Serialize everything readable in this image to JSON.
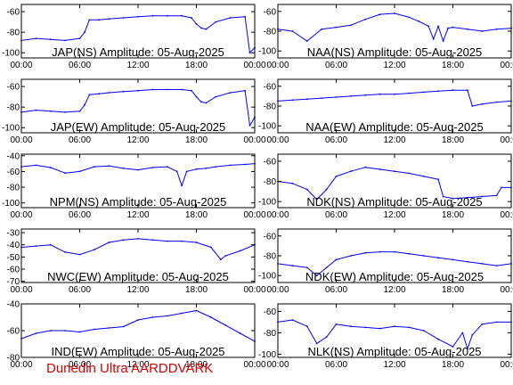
{
  "credit": "Dunedin Ultra AARDDVARK",
  "chart_data": [
    {
      "type": "line",
      "title": "JAP(NS) Amplitude: 05-Aug-2025",
      "ylim": [
        -105,
        -53
      ],
      "yticks": [
        -100,
        -80,
        -60
      ],
      "x": [
        "00:00",
        "01:30",
        "03:00",
        "04:30",
        "06:00",
        "06:30",
        "07:00",
        "08:00",
        "09:00",
        "10:30",
        "12:00",
        "13:30",
        "15:00",
        "16:30",
        "17:30",
        "18:00",
        "18:30",
        "19:00",
        "20:00",
        "21:30",
        "23:00",
        "23:30",
        "24:00"
      ],
      "series": [
        {
          "color": "#0000ff",
          "values": [
            -88,
            -86,
            -87,
            -88,
            -86,
            -80,
            -68,
            -68,
            -67,
            -66,
            -65,
            -64,
            -64,
            -64,
            -66,
            -72,
            -76,
            -77,
            -70,
            -66,
            -65,
            -100,
            -95
          ]
        }
      ]
    },
    {
      "type": "line",
      "title": "NAA(NS) Amplitude: 05-Aug-2025",
      "ylim": [
        -107,
        -53
      ],
      "yticks": [
        -100,
        -80,
        -60
      ],
      "x": [
        "00:00",
        "01:30",
        "03:00",
        "04:30",
        "06:00",
        "07:30",
        "09:00",
        "10:30",
        "12:00",
        "13:30",
        "14:30",
        "15:30",
        "16:00",
        "16:30",
        "17:00",
        "17:30",
        "18:00",
        "19:30",
        "21:00",
        "22:30",
        "24:00"
      ],
      "series": [
        {
          "color": "#0000ff",
          "values": [
            -78,
            -80,
            -90,
            -78,
            -76,
            -74,
            -68,
            -63,
            -62,
            -66,
            -70,
            -75,
            -88,
            -75,
            -90,
            -77,
            -76,
            -78,
            -80,
            -78,
            -77
          ]
        }
      ]
    },
    {
      "type": "line",
      "title": "JAP(EW) Amplitude: 05-Aug-2025",
      "ylim": [
        -105,
        -53
      ],
      "yticks": [
        -100,
        -80,
        -60
      ],
      "x": [
        "00:00",
        "01:30",
        "03:00",
        "04:30",
        "06:00",
        "06:30",
        "07:00",
        "08:00",
        "09:00",
        "10:30",
        "12:00",
        "13:30",
        "15:00",
        "16:30",
        "17:30",
        "18:00",
        "18:30",
        "19:00",
        "20:00",
        "21:30",
        "23:00",
        "23:30",
        "24:00"
      ],
      "series": [
        {
          "color": "#0000ff",
          "values": [
            -85,
            -83,
            -84,
            -85,
            -84,
            -78,
            -68,
            -67,
            -66,
            -65,
            -64,
            -63,
            -63,
            -63,
            -64,
            -70,
            -75,
            -76,
            -70,
            -66,
            -64,
            -98,
            -90
          ]
        }
      ]
    },
    {
      "type": "line",
      "title": "NAA(EW) Amplitude: 05-Aug-2025",
      "ylim": [
        -107,
        -53
      ],
      "yticks": [
        -100,
        -80,
        -60
      ],
      "x": [
        "00:00",
        "01:30",
        "03:00",
        "04:30",
        "06:00",
        "07:30",
        "09:00",
        "10:30",
        "12:00",
        "13:30",
        "15:00",
        "16:30",
        "18:00",
        "19:30",
        "20:00",
        "21:00",
        "22:30",
        "24:00"
      ],
      "series": [
        {
          "color": "#0000ff",
          "values": [
            -75,
            -74,
            -73,
            -72,
            -71,
            -70,
            -69,
            -68,
            -68,
            -67,
            -66,
            -65,
            -64,
            -64,
            -80,
            -78,
            -76,
            -75
          ]
        }
      ]
    },
    {
      "type": "line",
      "title": "NPM(NS) Amplitude: 05-Aug-2025",
      "ylim": [
        -106,
        -38
      ],
      "yticks": [
        -100,
        -80,
        -60,
        -40
      ],
      "x": [
        "00:00",
        "01:30",
        "03:00",
        "04:30",
        "06:00",
        "07:30",
        "09:00",
        "10:30",
        "12:00",
        "13:30",
        "15:00",
        "16:00",
        "16:30",
        "17:00",
        "18:00",
        "19:00",
        "20:00",
        "21:30",
        "23:00",
        "24:00"
      ],
      "series": [
        {
          "color": "#0000ff",
          "values": [
            -54,
            -52,
            -55,
            -62,
            -60,
            -54,
            -53,
            -56,
            -58,
            -55,
            -54,
            -60,
            -78,
            -60,
            -57,
            -56,
            -54,
            -52,
            -51,
            -50
          ]
        }
      ]
    },
    {
      "type": "line",
      "title": "NDK(NS) Amplitude: 05-Aug-2025",
      "ylim": [
        -106,
        -53
      ],
      "yticks": [
        -100,
        -80,
        -60
      ],
      "x": [
        "00:00",
        "01:30",
        "03:00",
        "04:00",
        "05:00",
        "06:00",
        "07:30",
        "09:00",
        "10:30",
        "12:00",
        "13:30",
        "15:00",
        "16:30",
        "17:00",
        "18:00",
        "19:30",
        "21:00",
        "22:30",
        "23:00",
        "24:00"
      ],
      "series": [
        {
          "color": "#0000ff",
          "values": [
            -80,
            -82,
            -88,
            -98,
            -88,
            -75,
            -70,
            -66,
            -68,
            -70,
            -72,
            -75,
            -78,
            -95,
            -97,
            -96,
            -95,
            -94,
            -86,
            -86
          ]
        }
      ]
    },
    {
      "type": "line",
      "title": "NWC(EW) Amplitude: 05-Aug-2025",
      "ylim": [
        -71,
        -27
      ],
      "yticks": [
        -70,
        -60,
        -50,
        -40,
        -30
      ],
      "x": [
        "00:00",
        "01:30",
        "03:00",
        "04:30",
        "06:00",
        "07:30",
        "09:00",
        "10:30",
        "12:00",
        "13:30",
        "15:00",
        "16:30",
        "18:00",
        "19:30",
        "20:30",
        "21:00",
        "22:30",
        "24:00"
      ],
      "series": [
        {
          "color": "#0000ff",
          "values": [
            -42,
            -41,
            -40,
            -46,
            -48,
            -44,
            -38,
            -36,
            -35,
            -36,
            -37,
            -37,
            -38,
            -42,
            -52,
            -49,
            -45,
            -40
          ]
        }
      ]
    },
    {
      "type": "line",
      "title": "NDK(EW) Amplitude: 05-Aug-2025",
      "ylim": [
        -107,
        -53
      ],
      "yticks": [
        -100,
        -80,
        -60
      ],
      "x": [
        "00:00",
        "01:30",
        "03:00",
        "04:00",
        "05:00",
        "06:00",
        "07:30",
        "09:00",
        "10:30",
        "12:00",
        "13:30",
        "15:00",
        "16:30",
        "18:00",
        "19:30",
        "21:00",
        "22:30",
        "24:00"
      ],
      "series": [
        {
          "color": "#0000ff",
          "values": [
            -88,
            -90,
            -92,
            -100,
            -92,
            -84,
            -80,
            -77,
            -76,
            -76,
            -78,
            -80,
            -82,
            -84,
            -86,
            -88,
            -90,
            -88
          ]
        }
      ]
    },
    {
      "type": "line",
      "title": "IND(EW) Amplitude: 05-Aug-2025",
      "ylim": [
        -80,
        -40
      ],
      "yticks": [
        -80,
        -60,
        -40
      ],
      "x": [
        "00:00",
        "01:30",
        "03:00",
        "04:30",
        "06:00",
        "07:30",
        "09:00",
        "10:30",
        "12:00",
        "13:30",
        "15:00",
        "16:30",
        "18:00",
        "19:30",
        "21:00",
        "22:30",
        "24:00"
      ],
      "series": [
        {
          "color": "#0000ff",
          "values": [
            -66,
            -62,
            -60,
            -60,
            -61,
            -59,
            -58,
            -57,
            -52,
            -50,
            -49,
            -47,
            -45,
            -50,
            -56,
            -62,
            -68
          ]
        }
      ]
    },
    {
      "type": "line",
      "title": "NLK(NS) Amplitude: 05-Aug-2025",
      "ylim": [
        -103,
        -53
      ],
      "yticks": [
        -100,
        -80,
        -60
      ],
      "x": [
        "00:00",
        "01:30",
        "03:00",
        "04:00",
        "05:00",
        "06:00",
        "07:30",
        "09:00",
        "10:30",
        "12:00",
        "13:30",
        "15:00",
        "16:30",
        "18:00",
        "19:00",
        "19:30",
        "20:00",
        "21:00",
        "22:30",
        "24:00"
      ],
      "series": [
        {
          "color": "#0000ff",
          "values": [
            -70,
            -68,
            -74,
            -90,
            -84,
            -72,
            -74,
            -75,
            -76,
            -74,
            -75,
            -78,
            -86,
            -93,
            -80,
            -95,
            -82,
            -72,
            -70,
            -70
          ]
        }
      ]
    }
  ],
  "xtick_labels": [
    "00:00",
    "06:00",
    "12:00",
    "18:00",
    "00:00"
  ]
}
